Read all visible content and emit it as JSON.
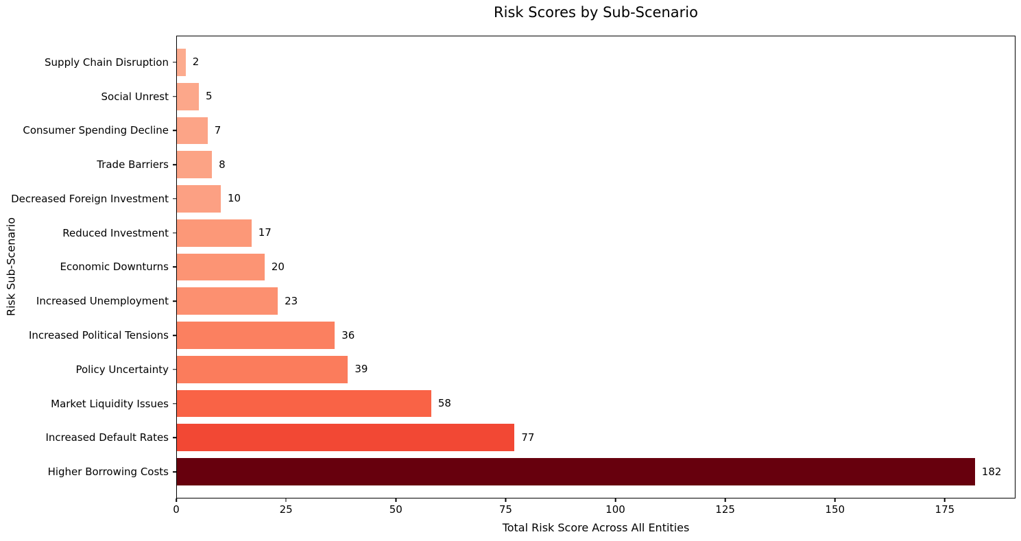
{
  "chart_data": {
    "type": "bar",
    "orientation": "horizontal",
    "title": "Risk Scores by Sub-Scenario",
    "xlabel": "Total Risk Score Across All Entities",
    "ylabel": "Risk Sub-Scenario",
    "categories": [
      "Supply Chain Disruption",
      "Social Unrest",
      "Consumer Spending Decline",
      "Trade Barriers",
      "Decreased Foreign Investment",
      "Reduced Investment",
      "Economic Downturns",
      "Increased Unemployment",
      "Increased Political Tensions",
      "Policy Uncertainty",
      "Market Liquidity Issues",
      "Increased Default Rates",
      "Higher Borrowing Costs"
    ],
    "values": [
      2,
      5,
      7,
      8,
      10,
      17,
      20,
      23,
      36,
      39,
      58,
      77,
      182
    ],
    "bar_colors": [
      "#fcab8e",
      "#fca78a",
      "#fca487",
      "#fca385",
      "#fca083",
      "#fc9878",
      "#fc9474",
      "#fc9070",
      "#fb8060",
      "#fb7c5c",
      "#f96346",
      "#f24834",
      "#67000d"
    ],
    "xlim": [
      0,
      191.1
    ],
    "x_ticks": [
      0,
      25,
      50,
      75,
      100,
      125,
      150,
      175
    ],
    "grid": false,
    "legend": null,
    "value_labels_shown": true
  },
  "colors": {
    "background": "#ffffff",
    "spine": "#000000",
    "text": "#000000"
  }
}
